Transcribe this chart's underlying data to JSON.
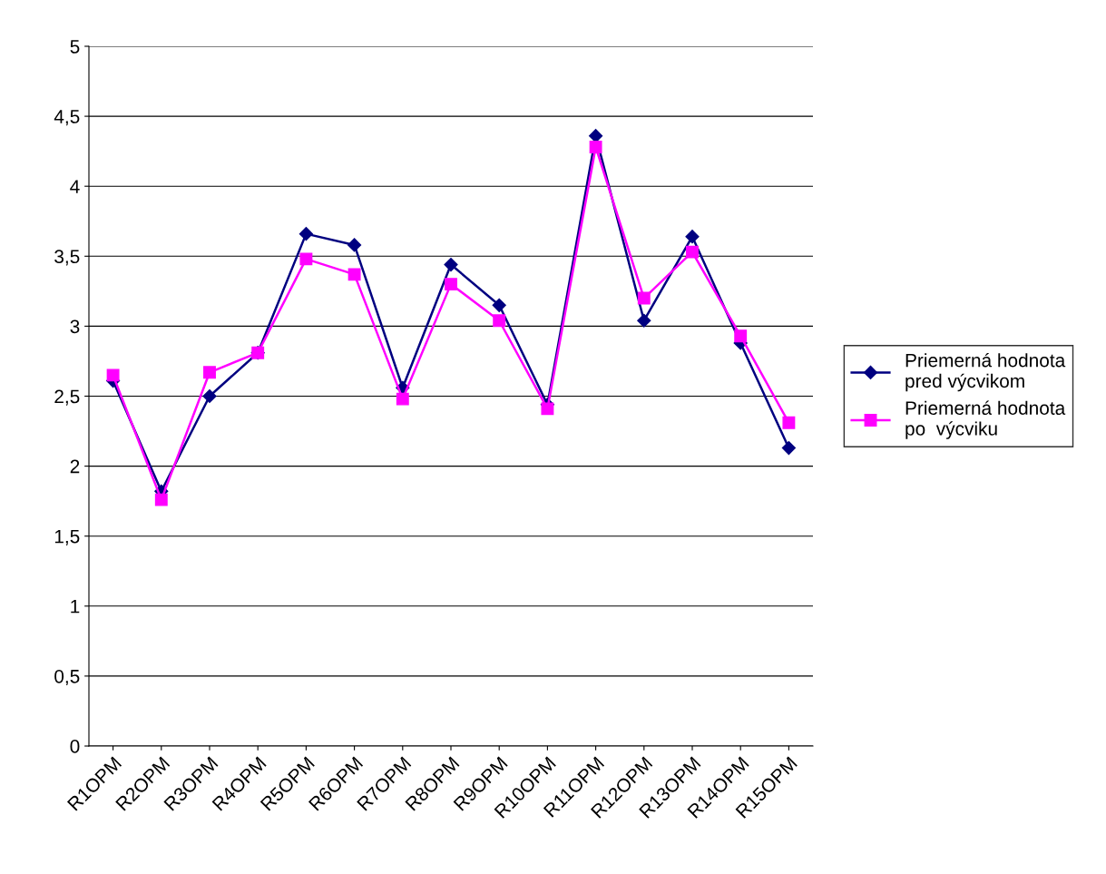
{
  "chart_data": {
    "type": "line",
    "categories": [
      "R1OPM",
      "R2OPM",
      "R3OPM",
      "R4OPM",
      "R5OPM",
      "R6OPM",
      "R7OPM",
      "R8OPM",
      "R9OPM",
      "R10OPM",
      "R11OPM",
      "R12OPM",
      "R13OPM",
      "R14OPM",
      "R15OPM"
    ],
    "series": [
      {
        "name": "Priemerná hodnota\npred výcvikom",
        "color": "#000080",
        "marker": "diamond",
        "values": [
          2.61,
          1.82,
          2.5,
          2.81,
          3.66,
          3.58,
          2.56,
          3.44,
          3.15,
          2.44,
          4.36,
          3.04,
          3.64,
          2.88,
          2.13
        ]
      },
      {
        "name": "Priemerná hodnota\npo  výcviku",
        "color": "#ff00ff",
        "marker": "square",
        "values": [
          2.65,
          1.76,
          2.67,
          2.81,
          3.48,
          3.37,
          2.48,
          3.3,
          3.04,
          2.41,
          4.28,
          3.2,
          3.53,
          2.93,
          2.31
        ]
      }
    ],
    "ylim": [
      0,
      5
    ],
    "yticks": [
      0,
      {
        "value": 0.5,
        "label": "0,5"
      },
      1,
      {
        "value": 1.5,
        "label": "1,5"
      },
      2,
      {
        "value": 2.5,
        "label": "2,5"
      },
      3,
      {
        "value": 3.5,
        "label": "3,5"
      },
      4,
      {
        "value": 4.5,
        "label": "4,5"
      },
      5
    ],
    "grid": "y",
    "legend": "right",
    "line_style": "solid"
  }
}
